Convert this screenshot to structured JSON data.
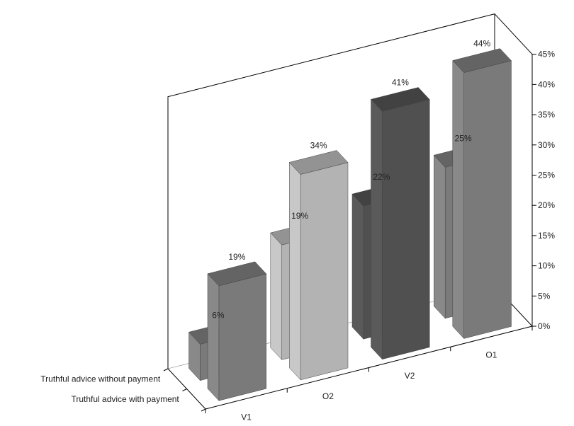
{
  "chart_data": {
    "type": "bar",
    "categories": [
      "V1",
      "O2",
      "V2",
      "O1"
    ],
    "series": [
      {
        "name": "Truthful advice with payment",
        "values": [
          19,
          34,
          41,
          44
        ]
      },
      {
        "name": "Truthful advice without payment",
        "values": [
          6,
          19,
          22,
          25
        ]
      }
    ],
    "y_ticks": [
      "0%",
      "5%",
      "10%",
      "15%",
      "20%",
      "25%",
      "30%",
      "35%",
      "40%",
      "45%"
    ],
    "ylim": [
      0,
      45
    ],
    "grid": false,
    "legend": "none"
  },
  "colors": {
    "light_gray": "#b3b3b3",
    "mid_gray": "#7a7a7a",
    "dark_gray": "#505050",
    "frame": "#000000"
  }
}
